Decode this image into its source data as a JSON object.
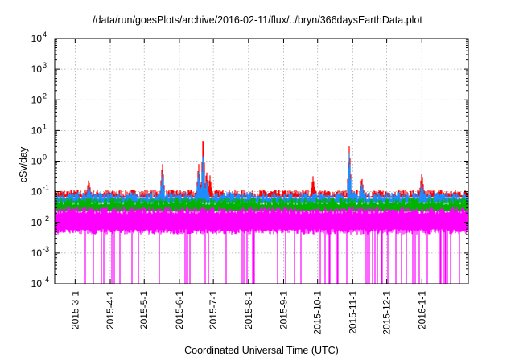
{
  "chart_data": {
    "type": "area",
    "title": "/data/run/goesPlots/archive/2016-02-11/flux/../bryn/366daysEarthData.plot",
    "xlabel": "Coordinated Universal Time (UTC)",
    "ylabel": "cSv/day",
    "y_scale": "log",
    "ylim": [
      0.0001,
      10000
    ],
    "y_ticks": [
      {
        "value": 0.0001,
        "base": "10",
        "exp": "-4"
      },
      {
        "value": 0.001,
        "base": "10",
        "exp": "-3"
      },
      {
        "value": 0.01,
        "base": "10",
        "exp": "-2"
      },
      {
        "value": 0.1,
        "base": "10",
        "exp": "-1"
      },
      {
        "value": 1,
        "base": "10",
        "exp": "0"
      },
      {
        "value": 10,
        "base": "10",
        "exp": "1"
      },
      {
        "value": 100,
        "base": "10",
        "exp": "2"
      },
      {
        "value": 1000,
        "base": "10",
        "exp": "3"
      },
      {
        "value": 10000,
        "base": "10",
        "exp": "4"
      }
    ],
    "xlim": [
      "2015-02-11",
      "2016-02-11"
    ],
    "x_ticks": [
      "2015-3-1",
      "2015-4-1",
      "2015-5-1",
      "2015-6-1",
      "2015-7-1",
      "2015-8-1",
      "2015-9-1",
      "2015-10-1",
      "2015-11-1",
      "2015-12-1",
      "2016-1-1"
    ],
    "x_tick_dates": [
      "2015-03-01",
      "2015-04-01",
      "2015-05-01",
      "2015-06-01",
      "2015-07-01",
      "2015-08-01",
      "2015-09-01",
      "2015-10-01",
      "2015-11-01",
      "2015-12-01",
      "2016-01-01"
    ],
    "grid": true,
    "series": [
      {
        "color": "#ff0000",
        "baseline": 0.09,
        "spikes": [
          {
            "date": "2015-03-13",
            "value": 0.25
          },
          {
            "date": "2015-05-17",
            "value": 0.95
          },
          {
            "date": "2015-06-18",
            "value": 0.9
          },
          {
            "date": "2015-06-22",
            "value": 9.5
          },
          {
            "date": "2015-06-25",
            "value": 0.5
          },
          {
            "date": "2015-06-28",
            "value": 0.35
          },
          {
            "date": "2015-09-27",
            "value": 0.33
          },
          {
            "date": "2015-10-29",
            "value": 3.6
          },
          {
            "date": "2015-11-09",
            "value": 0.3
          },
          {
            "date": "2016-01-01",
            "value": 0.45
          }
        ]
      },
      {
        "color": "#1e8cff",
        "baseline": 0.075,
        "spikes": [
          {
            "date": "2015-03-13",
            "value": 0.15
          },
          {
            "date": "2015-05-17",
            "value": 0.5
          },
          {
            "date": "2015-06-18",
            "value": 0.5
          },
          {
            "date": "2015-06-22",
            "value": 2.5
          },
          {
            "date": "2015-06-25",
            "value": 0.25
          },
          {
            "date": "2015-10-29",
            "value": 2.0
          },
          {
            "date": "2015-11-09",
            "value": 0.2
          },
          {
            "date": "2016-01-01",
            "value": 0.2
          }
        ]
      },
      {
        "color": "#00b300",
        "baseline": 0.05
      },
      {
        "color": "#ff00ff",
        "baseline": 0.025,
        "min": 0.0001
      }
    ]
  }
}
